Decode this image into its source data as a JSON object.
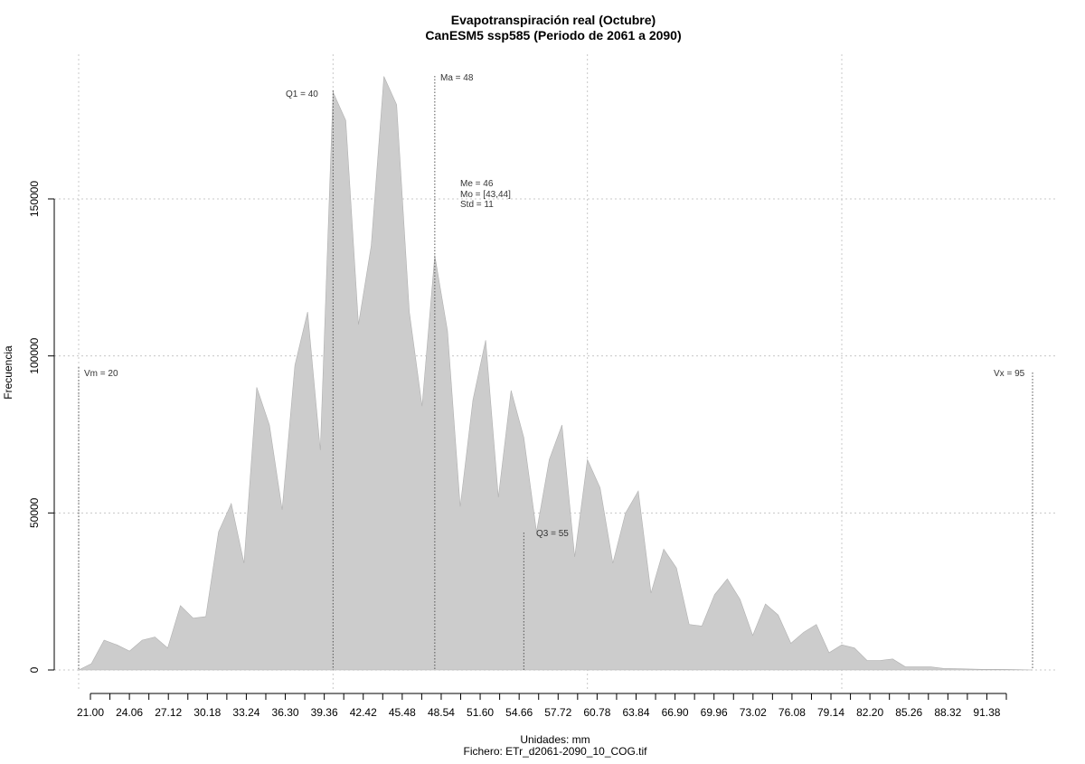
{
  "chart_data": {
    "type": "area",
    "title": "Evapotranspiración real (Octubre)",
    "subtitle": "CanESM5 ssp585 (Periodo de 2061 a 2090)",
    "xlabel": "Unidades: mm",
    "caption": "Fichero: ETr_d2061-2090_10_COG.tif",
    "ylabel": "Frecuencia",
    "xlim": [
      20,
      95
    ],
    "ylim": [
      0,
      150000
    ],
    "y_ticks": [
      "0",
      "50000",
      "100000",
      "150000"
    ],
    "x_ticks": [
      "21.00",
      "24.06",
      "27.12",
      "30.18",
      "33.24",
      "36.30",
      "39.36",
      "42.42",
      "45.48",
      "48.54",
      "51.60",
      "54.66",
      "57.72",
      "60.78",
      "63.84",
      "66.90",
      "69.96",
      "73.02",
      "76.08",
      "79.14",
      "82.20",
      "85.26",
      "88.32",
      "91.38"
    ],
    "grid": true,
    "fill_color": "#cccccc",
    "x": [
      20,
      21,
      22,
      23,
      24,
      25,
      26,
      27,
      28,
      29,
      30,
      31,
      32,
      33,
      34,
      35,
      36,
      37,
      38,
      39,
      40,
      41,
      42,
      43,
      44,
      45,
      46,
      47,
      48,
      49,
      50,
      51,
      52,
      53,
      54,
      55,
      56,
      57,
      58,
      59,
      60,
      61,
      62,
      63,
      64,
      65,
      66,
      67,
      68,
      69,
      70,
      71,
      72,
      73,
      74,
      75,
      76,
      77,
      78,
      79,
      80,
      81,
      82,
      83,
      84,
      85,
      86,
      87,
      88,
      89,
      90,
      91,
      92,
      93,
      94,
      95
    ],
    "y": [
      0,
      2000,
      9500,
      8000,
      6000,
      9500,
      10500,
      7000,
      20500,
      16500,
      17000,
      44000,
      53000,
      34000,
      90000,
      78000,
      51000,
      97000,
      114000,
      70000,
      184000,
      175000,
      110000,
      135000,
      189000,
      180000,
      114000,
      84000,
      132000,
      108000,
      52000,
      86000,
      105000,
      55000,
      89000,
      74000,
      44000,
      67000,
      78000,
      36000,
      67000,
      58000,
      34000,
      50000,
      57000,
      24500,
      38500,
      32500,
      14500,
      14000,
      24000,
      29000,
      22500,
      11000,
      21000,
      17500,
      8500,
      12000,
      14500,
      5500,
      8000,
      7000,
      3000,
      3000,
      3500,
      1000,
      1000,
      1000,
      500,
      400,
      300,
      200,
      200,
      150,
      100,
      0
    ],
    "stats": {
      "vm": {
        "label": "Vm = 20",
        "x": 20
      },
      "q1": {
        "label": "Q1 = 40",
        "x": 40
      },
      "ma": {
        "label": "Ma = 48",
        "x": 48
      },
      "me": "Me = 46",
      "mo": "Mo = [43,44]",
      "std": "Std = 11",
      "q3": {
        "label": "Q3 = 55",
        "x": 55
      },
      "vx": {
        "label": "Vx = 95",
        "x": 95
      }
    }
  }
}
